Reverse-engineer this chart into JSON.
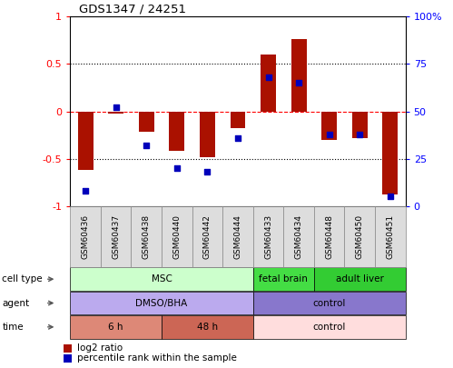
{
  "title": "GDS1347 / 24251",
  "samples": [
    "GSM60436",
    "GSM60437",
    "GSM60438",
    "GSM60440",
    "GSM60442",
    "GSM60444",
    "GSM60433",
    "GSM60434",
    "GSM60448",
    "GSM60450",
    "GSM60451"
  ],
  "log2_ratio": [
    -0.62,
    -0.02,
    -0.22,
    -0.42,
    -0.48,
    -0.18,
    0.6,
    0.76,
    -0.3,
    -0.28,
    -0.88
  ],
  "percentile_rank": [
    8,
    52,
    32,
    20,
    18,
    36,
    68,
    65,
    38,
    38,
    5
  ],
  "cell_type_groups": [
    {
      "label": "MSC",
      "start": 0,
      "end": 6,
      "color": "#ccffcc"
    },
    {
      "label": "fetal brain",
      "start": 6,
      "end": 8,
      "color": "#44dd44"
    },
    {
      "label": "adult liver",
      "start": 8,
      "end": 11,
      "color": "#33cc33"
    }
  ],
  "agent_groups": [
    {
      "label": "DMSO/BHA",
      "start": 0,
      "end": 6,
      "color": "#bbaaee"
    },
    {
      "label": "control",
      "start": 6,
      "end": 11,
      "color": "#8877cc"
    }
  ],
  "time_groups": [
    {
      "label": "6 h",
      "start": 0,
      "end": 3,
      "color": "#dd8877"
    },
    {
      "label": "48 h",
      "start": 3,
      "end": 6,
      "color": "#cc6655"
    },
    {
      "label": "control",
      "start": 6,
      "end": 11,
      "color": "#ffdddd"
    }
  ],
  "bar_color": "#aa1100",
  "dot_color": "#0000bb",
  "ylim_left": [
    -1,
    1
  ],
  "ylim_right": [
    0,
    100
  ],
  "legend_items": [
    {
      "label": "log2 ratio",
      "color": "#aa1100"
    },
    {
      "label": "percentile rank within the sample",
      "color": "#0000bb"
    }
  ],
  "background_color": "#ffffff"
}
